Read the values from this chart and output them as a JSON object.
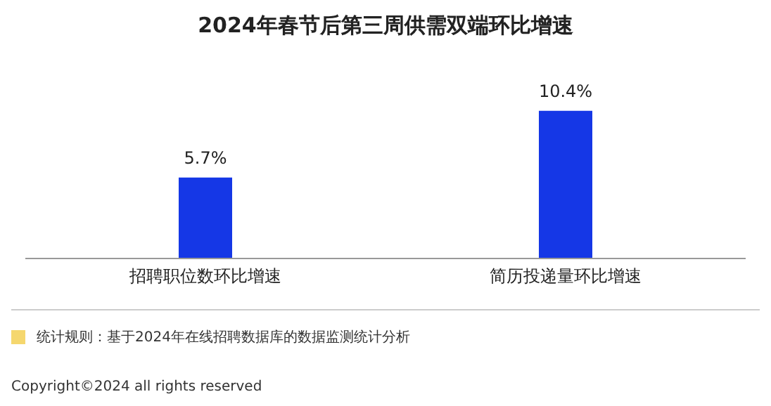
{
  "chart_data": {
    "type": "bar",
    "title": "2024年春节后第三周供需双端环比增速",
    "categories": [
      "招聘职位数环比增速",
      "简历投递量环比增速"
    ],
    "values": [
      5.7,
      10.4
    ],
    "color": "#1537e6",
    "value_labels": [
      "5.7%",
      "10.4%"
    ],
    "annotations": [
      "统计规则：基于2024年在线招聘数据库的数据监测统计分析",
      "Copyright©2024 all rights reserved"
    ],
    "grid": false,
    "legend": false
  }
}
